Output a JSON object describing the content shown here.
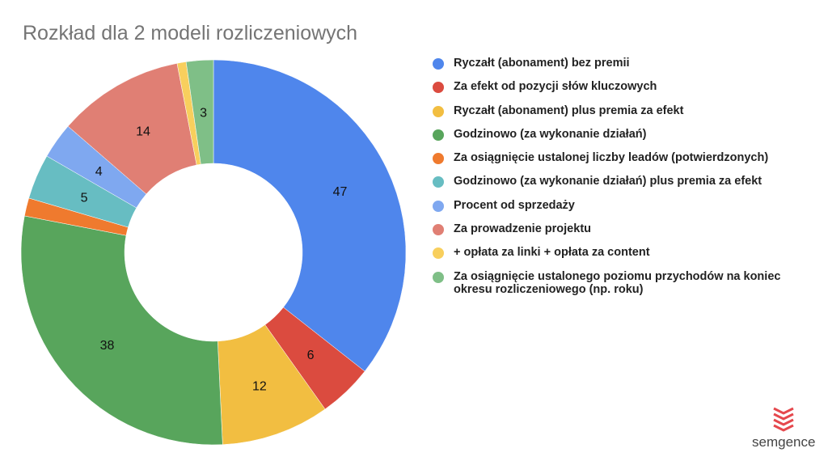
{
  "chart_data": {
    "type": "pie",
    "donut": true,
    "title": "Rozkład dla 2 modeli rozliczeniowych",
    "legend_position": "right",
    "categories": [
      "Ryczałt (abonament) bez premii",
      "Za efekt od pozycji słów kluczowych",
      "Ryczałt (abonament) plus premia za efekt",
      "Godzinowo (za wykonanie działań)",
      "Za osiągnięcie ustalonej liczby leadów (potwierdzonych)",
      "Godzinowo (za wykonanie działań) plus premia za efekt",
      "Procent od sprzedaży",
      "Za prowadzenie projektu",
      "+ opłata za linki + opłata za content",
      "Za osiągnięcie ustalonego poziomu przychodów na koniec okresu rozliczeniowego (np. roku)"
    ],
    "values": [
      47,
      6,
      12,
      38,
      2,
      5,
      4,
      14,
      1,
      3
    ],
    "show_label": [
      true,
      true,
      true,
      true,
      false,
      true,
      true,
      true,
      false,
      true
    ],
    "colors": [
      "#4f86ec",
      "#db4b3f",
      "#f2be41",
      "#58a55c",
      "#ef7a2e",
      "#67bdc2",
      "#7fa8f0",
      "#e07f74",
      "#f8cf5d",
      "#7fbf87"
    ]
  },
  "logo": {
    "text": "semgence",
    "color": "#e5484d"
  }
}
